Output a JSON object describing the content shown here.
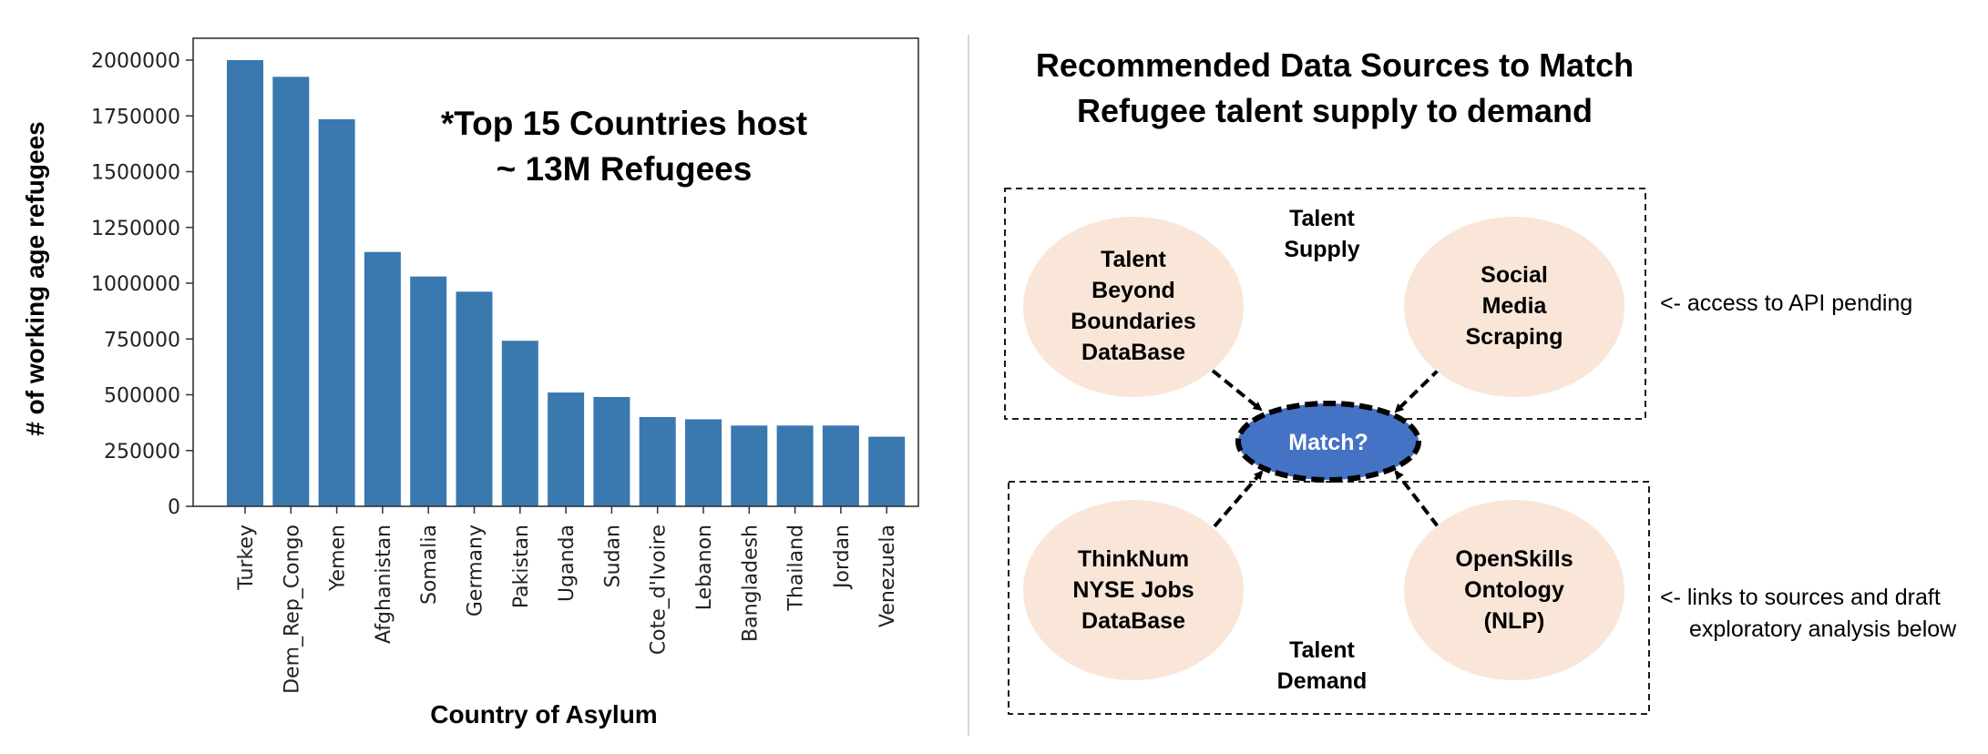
{
  "chart_data": {
    "type": "bar",
    "title": "",
    "annotation": [
      "*Top 15 Countries host",
      "~ 13M Refugees"
    ],
    "xlabel": "Country of Asylum",
    "ylabel": "# of working age refugees",
    "categories": [
      "Turkey",
      "Dem_Rep_Congo",
      "Yemen",
      "Afghanistan",
      "Somalia",
      "Germany",
      "Pakistan",
      "Uganda",
      "Sudan",
      "Cote_d'Ivoire",
      "Lebanon",
      "Bangladesh",
      "Thailand",
      "Jordan",
      "Venezuela"
    ],
    "values": [
      2000000,
      1925000,
      1735000,
      1140000,
      1030000,
      962000,
      742000,
      510000,
      490000,
      400000,
      390000,
      362000,
      362000,
      362000,
      312000
    ],
    "ylim": [
      0,
      2000000
    ],
    "yticks": [
      "0",
      "250000",
      "500000",
      "750000",
      "1000000",
      "1250000",
      "1500000",
      "1750000",
      "2000000"
    ],
    "bar_color": "#3a78b0",
    "grid": false
  },
  "diagram": {
    "title": [
      "Recommended Data Sources to Match",
      "Refugee talent supply to demand"
    ],
    "supply_label": [
      "Talent",
      "Supply"
    ],
    "demand_label": [
      "Talent",
      "Demand"
    ],
    "match_label": "Match?",
    "nodes": {
      "tbb": [
        "Talent",
        "Beyond",
        "Boundaries",
        "DataBase"
      ],
      "social": [
        "Social",
        "Media",
        "Scraping"
      ],
      "thinknum": [
        "ThinkNum",
        "NYSE Jobs",
        "DataBase"
      ],
      "openskills": [
        "OpenSkills",
        "Ontology",
        "(NLP)"
      ]
    },
    "notes": {
      "api": "<- access to API pending",
      "links_1": "<- links to sources and draft",
      "links_2": "exploratory analysis below"
    },
    "colors": {
      "node_fill": "#f9e6d8",
      "match_fill": "#4472c4"
    }
  }
}
